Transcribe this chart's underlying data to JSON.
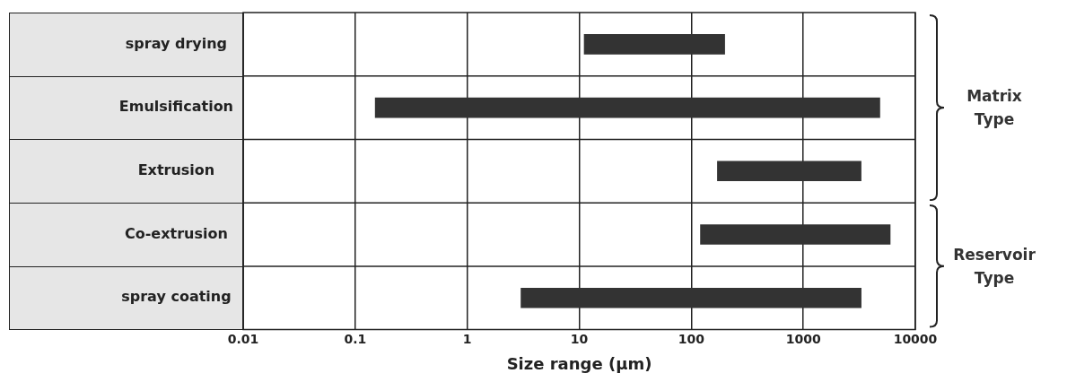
{
  "chart_data": {
    "type": "bar",
    "orientation": "horizontal",
    "xlabel": "Size range (µm)",
    "categories": [
      "spray drying",
      "Emulsification",
      "Extrusion",
      "Co-extrusion",
      "spray coating"
    ],
    "base": [
      11,
      0.15,
      170,
      120,
      3
    ],
    "values": [
      189,
      4850,
      3130,
      5880,
      3300
    ],
    "color": "#333333",
    "log": "x",
    "xlim": [
      0.01,
      10000
    ],
    "xticks": [
      0.01,
      0.1,
      1,
      10,
      100,
      1000,
      10000
    ],
    "grid": true,
    "legend": false,
    "annotations": [
      "Matrix Type",
      "Reservoir Type"
    ]
  }
}
